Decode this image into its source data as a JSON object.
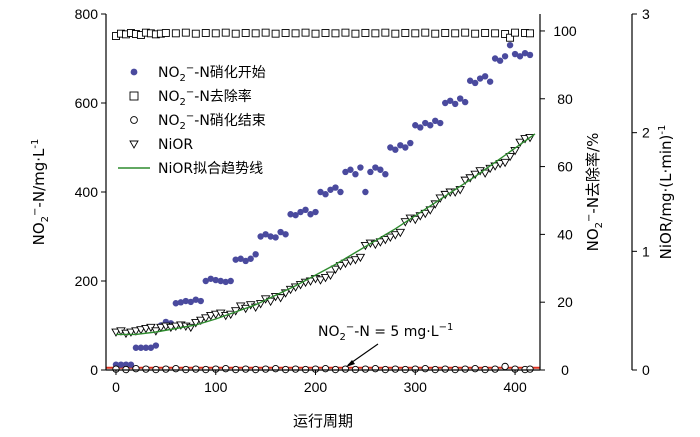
{
  "chart_data": {
    "type": "scatter",
    "xlabel": "运行周期",
    "ylabel_left": {
      "base": "NO",
      "sub": "2",
      "sup": "−",
      "rest": "-N/mg·L",
      "sup2": "-1"
    },
    "ylabel_right1": {
      "base": "NO",
      "sub": "2",
      "sup": "−",
      "rest": "-N去除率/%"
    },
    "ylabel_right2": {
      "rest": "NiOR/mg·(L·min)",
      "sup2": "-1"
    },
    "x_ticks": [
      "0",
      "100",
      "200",
      "300",
      "400"
    ],
    "y_left_ticks": [
      "0",
      "200",
      "400",
      "600",
      "800"
    ],
    "y_right1_ticks": [
      "0",
      "20",
      "40",
      "60",
      "80",
      "100"
    ],
    "y_right2_ticks": [
      "0",
      "1",
      "2",
      "3"
    ],
    "xlim": [
      -10,
      425
    ],
    "ylim_left": [
      0,
      800
    ],
    "ylim_right1": [
      0,
      105
    ],
    "ylim_right2": [
      0,
      3
    ],
    "legend": [
      {
        "marker": "filled-circle",
        "label": {
          "base": "NO",
          "sub": "2",
          "sup": "−",
          "rest": "-N硝化开始"
        }
      },
      {
        "marker": "open-square",
        "label": {
          "base": "NO",
          "sub": "2",
          "sup": "−",
          "rest": "-N去除率"
        }
      },
      {
        "marker": "open-circle",
        "label": {
          "base": "NO",
          "sub": "2",
          "sup": "−",
          "rest": "-N硝化结束"
        }
      },
      {
        "marker": "open-triangle-down",
        "label": {
          "rest": "NiOR"
        }
      },
      {
        "marker": "line",
        "label": {
          "rest": "NiOR拟合趋势线"
        }
      }
    ],
    "annotation": {
      "base": "NO",
      "sub": "2",
      "sup": "−",
      "rest": "-N = 5 mg·L",
      "sup2": "−1"
    },
    "annotation_value": 5,
    "colors": {
      "start": "#4a4a9e",
      "line": "#2e8b2e",
      "ref": "#e0301e"
    },
    "series": [
      {
        "name": "NO2−-N硝化开始",
        "axis": "left",
        "x": [
          0,
          5,
          10,
          15,
          20,
          25,
          30,
          35,
          40,
          45,
          50,
          55,
          60,
          65,
          70,
          75,
          80,
          85,
          90,
          95,
          100,
          105,
          110,
          115,
          120,
          125,
          130,
          135,
          140,
          145,
          150,
          155,
          160,
          165,
          170,
          175,
          180,
          185,
          190,
          195,
          200,
          205,
          210,
          215,
          220,
          225,
          230,
          235,
          240,
          245,
          250,
          255,
          260,
          265,
          270,
          275,
          280,
          285,
          290,
          295,
          300,
          305,
          310,
          315,
          320,
          325,
          330,
          335,
          340,
          345,
          350,
          355,
          360,
          365,
          370,
          375,
          380,
          385,
          390,
          395,
          400,
          405,
          410,
          415
        ],
        "y": [
          12,
          12,
          12,
          12,
          50,
          50,
          50,
          50,
          55,
          100,
          108,
          105,
          150,
          152,
          155,
          153,
          158,
          155,
          200,
          205,
          202,
          200,
          198,
          200,
          248,
          250,
          245,
          250,
          260,
          300,
          305,
          300,
          298,
          310,
          305,
          350,
          348,
          355,
          360,
          350,
          355,
          400,
          395,
          405,
          410,
          400,
          445,
          450,
          440,
          455,
          400,
          445,
          455,
          450,
          440,
          500,
          495,
          505,
          500,
          510,
          550,
          545,
          555,
          550,
          560,
          555,
          600,
          605,
          598,
          610,
          602,
          650,
          645,
          655,
          660,
          648,
          700,
          695,
          705,
          730,
          710,
          705,
          712,
          708
        ]
      },
      {
        "name": "NO2−-N去除率",
        "axis": "right1",
        "x": [
          0,
          5,
          10,
          15,
          20,
          25,
          30,
          35,
          40,
          45,
          50,
          60,
          70,
          80,
          90,
          100,
          110,
          120,
          130,
          140,
          150,
          160,
          170,
          180,
          190,
          200,
          210,
          220,
          230,
          240,
          250,
          260,
          270,
          280,
          290,
          300,
          310,
          320,
          330,
          340,
          350,
          360,
          370,
          380,
          390,
          395,
          400,
          410,
          415
        ],
        "y": [
          98.5,
          99.2,
          99.0,
          99.4,
          99.1,
          98.8,
          99.5,
          99.3,
          99.0,
          99.2,
          99.4,
          99.3,
          99.5,
          99.2,
          99.4,
          99.3,
          99.5,
          99.2,
          99.4,
          99.3,
          99.5,
          99.2,
          99.4,
          99.3,
          99.5,
          99.2,
          99.4,
          99.3,
          99.5,
          99.2,
          99.4,
          99.3,
          99.5,
          99.2,
          99.4,
          99.3,
          99.5,
          99.2,
          99.4,
          99.3,
          99.5,
          99.2,
          99.4,
          99.3,
          99.1,
          98.0,
          99.5,
          99.4,
          99.3
        ]
      },
      {
        "name": "NO2−-N硝化结束",
        "axis": "left",
        "x": [
          0,
          10,
          20,
          30,
          40,
          50,
          60,
          70,
          80,
          90,
          100,
          110,
          120,
          130,
          140,
          150,
          160,
          170,
          180,
          190,
          200,
          210,
          220,
          230,
          240,
          250,
          260,
          270,
          280,
          290,
          300,
          310,
          320,
          330,
          340,
          350,
          360,
          370,
          380,
          390,
          400,
          410,
          415
        ],
        "y": [
          2,
          1,
          3,
          2,
          1,
          2,
          3,
          1,
          2,
          1,
          2,
          3,
          1,
          2,
          1,
          2,
          3,
          1,
          2,
          1,
          2,
          3,
          1,
          2,
          1,
          2,
          3,
          1,
          2,
          1,
          2,
          3,
          1,
          2,
          1,
          2,
          3,
          1,
          2,
          8,
          2,
          1,
          2
        ]
      },
      {
        "name": "NiOR",
        "axis": "right2",
        "x": [
          0,
          5,
          10,
          15,
          20,
          25,
          30,
          35,
          40,
          45,
          50,
          55,
          60,
          65,
          70,
          75,
          80,
          85,
          90,
          95,
          100,
          105,
          110,
          115,
          120,
          125,
          130,
          135,
          140,
          145,
          150,
          155,
          160,
          165,
          170,
          175,
          180,
          185,
          190,
          195,
          200,
          205,
          210,
          215,
          220,
          225,
          230,
          235,
          240,
          245,
          250,
          255,
          260,
          265,
          270,
          275,
          280,
          285,
          290,
          295,
          300,
          305,
          310,
          315,
          320,
          325,
          330,
          335,
          340,
          345,
          350,
          355,
          360,
          365,
          370,
          375,
          380,
          385,
          390,
          395,
          400,
          405,
          410,
          415
        ],
        "y": [
          0.32,
          0.33,
          0.31,
          0.32,
          0.33,
          0.34,
          0.35,
          0.36,
          0.33,
          0.36,
          0.37,
          0.36,
          0.37,
          0.38,
          0.37,
          0.36,
          0.4,
          0.42,
          0.44,
          0.46,
          0.47,
          0.48,
          0.46,
          0.47,
          0.5,
          0.54,
          0.52,
          0.55,
          0.53,
          0.56,
          0.6,
          0.58,
          0.62,
          0.61,
          0.65,
          0.68,
          0.7,
          0.72,
          0.74,
          0.75,
          0.77,
          0.76,
          0.78,
          0.8,
          0.85,
          0.88,
          0.9,
          0.92,
          0.93,
          0.95,
          1.05,
          1.07,
          1.06,
          1.08,
          1.1,
          1.12,
          1.14,
          1.16,
          1.25,
          1.28,
          1.27,
          1.3,
          1.32,
          1.35,
          1.4,
          1.45,
          1.48,
          1.5,
          1.5,
          1.52,
          1.6,
          1.62,
          1.65,
          1.68,
          1.66,
          1.7,
          1.72,
          1.74,
          1.75,
          1.8,
          1.85,
          1.92,
          1.95,
          1.96
        ]
      },
      {
        "name": "NiOR拟合趋势线",
        "axis": "right2",
        "type": "line",
        "x": [
          0,
          20,
          40,
          60,
          80,
          100,
          120,
          140,
          160,
          180,
          200,
          220,
          240,
          260,
          280,
          300,
          320,
          340,
          360,
          380,
          400,
          420
        ],
        "y": [
          0.3,
          0.3,
          0.32,
          0.35,
          0.38,
          0.43,
          0.49,
          0.55,
          0.63,
          0.71,
          0.8,
          0.89,
          0.99,
          1.09,
          1.19,
          1.3,
          1.41,
          1.52,
          1.63,
          1.75,
          1.87,
          1.99
        ]
      }
    ]
  }
}
